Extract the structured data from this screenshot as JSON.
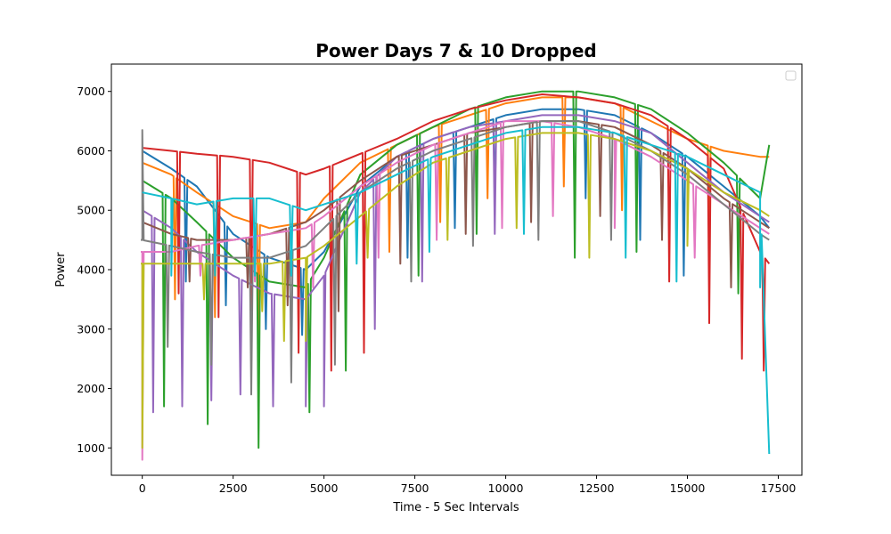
{
  "chart_data": {
    "type": "line",
    "title": "Power Days 7 & 10 Dropped",
    "xlabel": "Time - 5 Sec Intervals",
    "ylabel": "Power",
    "xlim": [
      -850,
      18150
    ],
    "ylim": [
      540,
      7460
    ],
    "xticks": [
      0,
      2500,
      5000,
      7500,
      10000,
      12500,
      15000,
      17500
    ],
    "xtick_labels": [
      "0",
      "2500",
      "5000",
      "7500",
      "10000",
      "12500",
      "15000",
      "17500"
    ],
    "yticks": [
      1000,
      2000,
      3000,
      4000,
      5000,
      6000,
      7000
    ],
    "ytick_labels": [
      "1000",
      "2000",
      "3000",
      "4000",
      "5000",
      "6000",
      "7000"
    ],
    "grid": false,
    "legend": {
      "location": "upper right",
      "entries": []
    },
    "series": [
      {
        "color": "#1f77b4",
        "points": [
          [
            0,
            6000
          ],
          [
            800,
            5700
          ],
          [
            1500,
            5400
          ],
          [
            2500,
            4600
          ],
          [
            3500,
            4200
          ],
          [
            4500,
            4000
          ],
          [
            5000,
            4300
          ],
          [
            6000,
            5400
          ],
          [
            7000,
            5900
          ],
          [
            8000,
            6200
          ],
          [
            9000,
            6400
          ],
          [
            10000,
            6600
          ],
          [
            11000,
            6700
          ],
          [
            12000,
            6700
          ],
          [
            13000,
            6600
          ],
          [
            14000,
            6300
          ],
          [
            15000,
            5900
          ],
          [
            16000,
            5400
          ],
          [
            17000,
            4900
          ],
          [
            17250,
            4700
          ]
        ],
        "dips": [
          [
            1200,
            3800
          ],
          [
            2300,
            3400
          ],
          [
            3400,
            3000
          ],
          [
            4400,
            2900
          ],
          [
            7300,
            4200
          ],
          [
            8600,
            4700
          ],
          [
            9700,
            5100
          ],
          [
            12200,
            5200
          ],
          [
            13700,
            4500
          ],
          [
            14900,
            3900
          ]
        ]
      },
      {
        "color": "#ff7f0e",
        "points": [
          [
            0,
            5800
          ],
          [
            800,
            5600
          ],
          [
            1500,
            5300
          ],
          [
            2500,
            4900
          ],
          [
            3500,
            4700
          ],
          [
            4500,
            4800
          ],
          [
            5000,
            5200
          ],
          [
            6000,
            5800
          ],
          [
            7000,
            6100
          ],
          [
            8000,
            6400
          ],
          [
            9000,
            6600
          ],
          [
            10000,
            6800
          ],
          [
            11000,
            6900
          ],
          [
            12000,
            6900
          ],
          [
            13000,
            6800
          ],
          [
            14000,
            6500
          ],
          [
            15000,
            6200
          ],
          [
            16000,
            6000
          ],
          [
            17000,
            5900
          ],
          [
            17250,
            5900
          ]
        ],
        "dips": [
          [
            900,
            3500
          ],
          [
            2000,
            3200
          ],
          [
            3200,
            2800
          ],
          [
            4300,
            3000
          ],
          [
            6800,
            4300
          ],
          [
            8200,
            4800
          ],
          [
            9500,
            5200
          ],
          [
            11600,
            5400
          ],
          [
            13200,
            5000
          ],
          [
            15600,
            4900
          ]
        ]
      },
      {
        "color": "#2ca02c",
        "points": [
          [
            0,
            5500
          ],
          [
            800,
            5200
          ],
          [
            1500,
            4800
          ],
          [
            2500,
            4200
          ],
          [
            3500,
            3800
          ],
          [
            4500,
            3700
          ],
          [
            5000,
            4200
          ],
          [
            6000,
            5600
          ],
          [
            7000,
            6100
          ],
          [
            8000,
            6400
          ],
          [
            9000,
            6700
          ],
          [
            10000,
            6900
          ],
          [
            11000,
            7000
          ],
          [
            12000,
            7000
          ],
          [
            13000,
            6900
          ],
          [
            14000,
            6700
          ],
          [
            15000,
            6300
          ],
          [
            16000,
            5800
          ],
          [
            17000,
            5200
          ],
          [
            17250,
            6100
          ]
        ],
        "dips": [
          [
            600,
            1700
          ],
          [
            1800,
            1400
          ],
          [
            3200,
            1000
          ],
          [
            4600,
            1600
          ],
          [
            5600,
            2300
          ],
          [
            7600,
            3900
          ],
          [
            9200,
            4600
          ],
          [
            11900,
            4200
          ],
          [
            13600,
            4300
          ],
          [
            16400,
            3600
          ]
        ]
      },
      {
        "color": "#d62728",
        "points": [
          [
            0,
            6050
          ],
          [
            800,
            6000
          ],
          [
            1500,
            5950
          ],
          [
            2500,
            5900
          ],
          [
            3500,
            5800
          ],
          [
            4500,
            5600
          ],
          [
            5000,
            5700
          ],
          [
            6000,
            5950
          ],
          [
            7000,
            6200
          ],
          [
            8000,
            6500
          ],
          [
            9000,
            6700
          ],
          [
            10000,
            6850
          ],
          [
            11000,
            6950
          ],
          [
            12000,
            6900
          ],
          [
            13000,
            6800
          ],
          [
            14000,
            6600
          ],
          [
            15000,
            6200
          ],
          [
            16000,
            5700
          ],
          [
            17000,
            4300
          ],
          [
            17250,
            4100
          ]
        ],
        "dips": [
          [
            1000,
            3600
          ],
          [
            2100,
            3200
          ],
          [
            3000,
            3100
          ],
          [
            4300,
            2600
          ],
          [
            5200,
            2300
          ],
          [
            6100,
            2600
          ],
          [
            14500,
            3800
          ],
          [
            15600,
            3100
          ],
          [
            16500,
            2500
          ],
          [
            17100,
            2300
          ]
        ]
      },
      {
        "color": "#9467bd",
        "points": [
          [
            0,
            5000
          ],
          [
            800,
            4700
          ],
          [
            1500,
            4300
          ],
          [
            2500,
            3900
          ],
          [
            3500,
            3600
          ],
          [
            4500,
            3500
          ],
          [
            5000,
            3900
          ],
          [
            6000,
            5300
          ],
          [
            7000,
            5900
          ],
          [
            8000,
            6200
          ],
          [
            9000,
            6400
          ],
          [
            10000,
            6500
          ],
          [
            11000,
            6600
          ],
          [
            12000,
            6600
          ],
          [
            13000,
            6500
          ],
          [
            14000,
            6300
          ],
          [
            15000,
            5800
          ],
          [
            16000,
            5300
          ],
          [
            17000,
            4900
          ],
          [
            17250,
            4800
          ]
        ],
        "dips": [
          [
            300,
            1600
          ],
          [
            1100,
            1700
          ],
          [
            1900,
            1800
          ],
          [
            2700,
            1900
          ],
          [
            3600,
            1700
          ],
          [
            4500,
            1700
          ],
          [
            5000,
            1700
          ],
          [
            6400,
            3000
          ],
          [
            7700,
            3800
          ],
          [
            9700,
            4600
          ]
        ]
      },
      {
        "color": "#8c564b",
        "points": [
          [
            0,
            4800
          ],
          [
            800,
            4600
          ],
          [
            1500,
            4500
          ],
          [
            2500,
            4500
          ],
          [
            3500,
            4600
          ],
          [
            4500,
            4800
          ],
          [
            5000,
            5000
          ],
          [
            6000,
            5500
          ],
          [
            7000,
            5900
          ],
          [
            8000,
            6100
          ],
          [
            9000,
            6300
          ],
          [
            10000,
            6400
          ],
          [
            11000,
            6500
          ],
          [
            12000,
            6500
          ],
          [
            13000,
            6400
          ],
          [
            14000,
            6100
          ],
          [
            15000,
            5700
          ],
          [
            16000,
            5200
          ],
          [
            17000,
            4800
          ],
          [
            17250,
            4700
          ]
        ],
        "dips": [
          [
            1300,
            3800
          ],
          [
            2900,
            3700
          ],
          [
            4000,
            3400
          ],
          [
            5400,
            3300
          ],
          [
            7100,
            4100
          ],
          [
            8900,
            4600
          ],
          [
            10700,
            4800
          ],
          [
            12600,
            4900
          ],
          [
            14300,
            4500
          ],
          [
            16200,
            3700
          ]
        ]
      },
      {
        "color": "#e377c2",
        "points": [
          [
            0,
            4300
          ],
          [
            800,
            4300
          ],
          [
            1500,
            4400
          ],
          [
            2500,
            4500
          ],
          [
            3500,
            4600
          ],
          [
            4500,
            4700
          ],
          [
            5000,
            4900
          ],
          [
            6000,
            5400
          ],
          [
            7000,
            5800
          ],
          [
            8000,
            6100
          ],
          [
            9000,
            6300
          ],
          [
            10000,
            6500
          ],
          [
            11000,
            6500
          ],
          [
            12000,
            6400
          ],
          [
            13000,
            6200
          ],
          [
            14000,
            5900
          ],
          [
            15000,
            5500
          ],
          [
            16000,
            5100
          ],
          [
            17000,
            4700
          ],
          [
            17250,
            4600
          ]
        ],
        "dips": [
          [
            0,
            800
          ],
          [
            1600,
            3900
          ],
          [
            3100,
            3800
          ],
          [
            4700,
            3700
          ],
          [
            6500,
            4200
          ],
          [
            8100,
            4500
          ],
          [
            9900,
            4700
          ],
          [
            11300,
            4900
          ],
          [
            13000,
            4700
          ],
          [
            15200,
            4200
          ]
        ]
      },
      {
        "color": "#7f7f7f",
        "points": [
          [
            0,
            4500
          ],
          [
            800,
            4400
          ],
          [
            1500,
            4300
          ],
          [
            2500,
            4200
          ],
          [
            3500,
            4200
          ],
          [
            4500,
            4400
          ],
          [
            5000,
            4700
          ],
          [
            6000,
            5300
          ],
          [
            7000,
            5700
          ],
          [
            8000,
            6000
          ],
          [
            9000,
            6200
          ],
          [
            10000,
            6400
          ],
          [
            11000,
            6500
          ],
          [
            12000,
            6500
          ],
          [
            13000,
            6300
          ],
          [
            14000,
            6000
          ],
          [
            15000,
            5600
          ],
          [
            16000,
            5100
          ],
          [
            17000,
            4600
          ],
          [
            17250,
            4500
          ]
        ],
        "dips": [
          [
            0,
            6350
          ],
          [
            700,
            2700
          ],
          [
            1900,
            2400
          ],
          [
            3000,
            1900
          ],
          [
            4100,
            2100
          ],
          [
            5300,
            2400
          ],
          [
            7400,
            3800
          ],
          [
            9100,
            4400
          ],
          [
            10900,
            4500
          ],
          [
            12900,
            4500
          ]
        ]
      },
      {
        "color": "#bcbd22",
        "points": [
          [
            0,
            4100
          ],
          [
            800,
            4100
          ],
          [
            1500,
            4100
          ],
          [
            2500,
            4100
          ],
          [
            3500,
            4100
          ],
          [
            4500,
            4200
          ],
          [
            5000,
            4400
          ],
          [
            6000,
            4900
          ],
          [
            7000,
            5400
          ],
          [
            8000,
            5800
          ],
          [
            9000,
            6000
          ],
          [
            10000,
            6200
          ],
          [
            11000,
            6300
          ],
          [
            12000,
            6300
          ],
          [
            13000,
            6200
          ],
          [
            14000,
            6000
          ],
          [
            15000,
            5700
          ],
          [
            16000,
            5300
          ],
          [
            17000,
            5000
          ],
          [
            17250,
            4900
          ]
        ],
        "dips": [
          [
            0,
            1000
          ],
          [
            1700,
            3500
          ],
          [
            3300,
            3300
          ],
          [
            3900,
            2800
          ],
          [
            4500,
            2800
          ],
          [
            6200,
            4200
          ],
          [
            8400,
            4500
          ],
          [
            10300,
            4700
          ],
          [
            12300,
            4200
          ],
          [
            15000,
            4400
          ]
        ]
      },
      {
        "color": "#17becf",
        "points": [
          [
            0,
            5300
          ],
          [
            800,
            5200
          ],
          [
            1500,
            5100
          ],
          [
            2500,
            5200
          ],
          [
            3500,
            5200
          ],
          [
            4500,
            5000
          ],
          [
            5000,
            5100
          ],
          [
            6000,
            5300
          ],
          [
            7000,
            5600
          ],
          [
            8000,
            5900
          ],
          [
            9000,
            6100
          ],
          [
            10000,
            6300
          ],
          [
            11000,
            6400
          ],
          [
            12000,
            6400
          ],
          [
            13000,
            6300
          ],
          [
            14000,
            6100
          ],
          [
            15000,
            5900
          ],
          [
            16000,
            5600
          ],
          [
            17000,
            5300
          ],
          [
            17250,
            900
          ]
        ],
        "dips": [
          [
            800,
            3900
          ],
          [
            2000,
            3900
          ],
          [
            3100,
            3900
          ],
          [
            4100,
            3900
          ],
          [
            5900,
            4100
          ],
          [
            7900,
            4300
          ],
          [
            10500,
            4600
          ],
          [
            13300,
            4200
          ],
          [
            14700,
            3800
          ],
          [
            17000,
            3700
          ]
        ]
      }
    ]
  }
}
